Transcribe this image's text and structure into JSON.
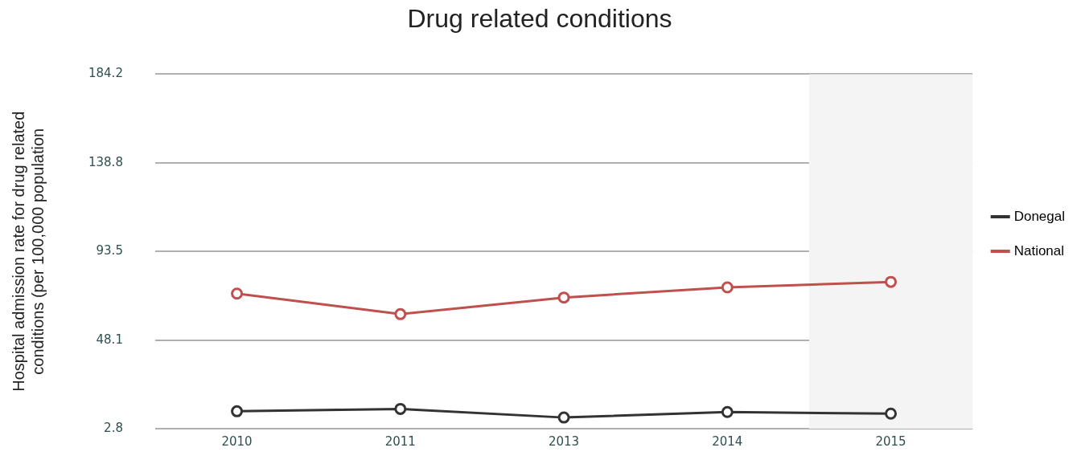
{
  "chart_data": {
    "type": "line",
    "title": "Drug related conditions",
    "ylabel": "Hospital admission rate for drug related conditions (per 100,000 population",
    "categories": [
      "2010",
      "2011",
      "2013",
      "2014",
      "2015"
    ],
    "series": [
      {
        "name": "Donegal",
        "color": "#333333",
        "values": [
          11.7,
          12.9,
          8.5,
          11.3,
          10.5
        ]
      },
      {
        "name": "National",
        "color": "#c0504d",
        "values": [
          71.9,
          61.4,
          69.9,
          75.1,
          77.9
        ]
      }
    ],
    "ylim": [
      2.8,
      184.2
    ],
    "yticks": [
      2.8,
      48.1,
      93.5,
      138.8,
      184.2
    ],
    "bands": [
      {
        "axis": "x",
        "from": "2015",
        "to": "2015",
        "color": "#f4f4f4"
      }
    ],
    "grid": "y",
    "legend": "right",
    "marker": "circle",
    "line_style": "solid"
  }
}
